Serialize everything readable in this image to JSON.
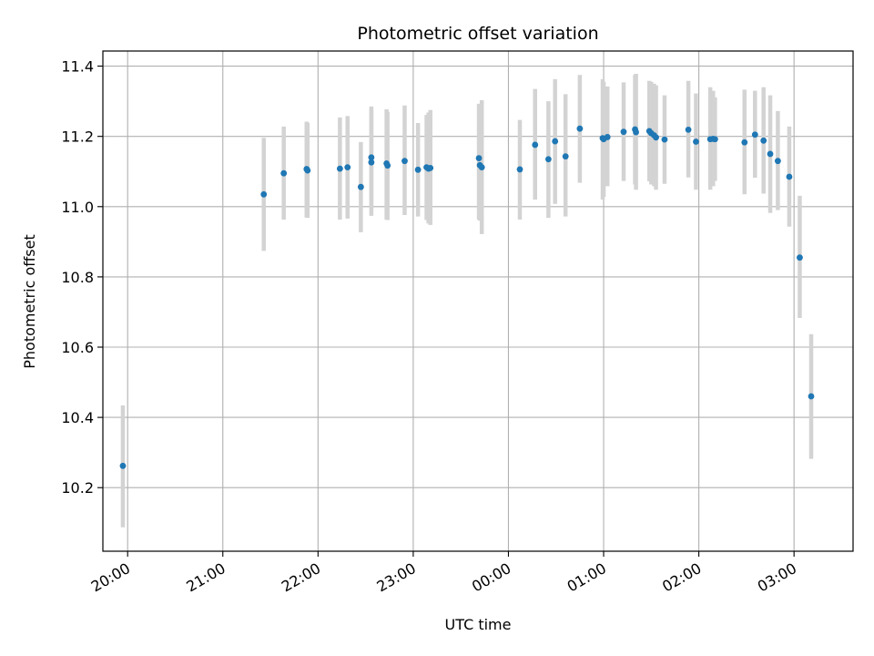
{
  "chart_data": {
    "type": "scatter",
    "title": "Photometric offset variation",
    "xlabel": "UTC time",
    "ylabel": "Photometric offset",
    "xlim": [
      -4.26,
      3.62
    ],
    "ylim": [
      10.019,
      11.443
    ],
    "x_unit": "hours relative to 00:00 UTC",
    "xticks": [
      {
        "value": -4,
        "label": "20:00"
      },
      {
        "value": -3,
        "label": "21:00"
      },
      {
        "value": -2,
        "label": "22:00"
      },
      {
        "value": -1,
        "label": "23:00"
      },
      {
        "value": 0,
        "label": "00:00"
      },
      {
        "value": 1,
        "label": "01:00"
      },
      {
        "value": 2,
        "label": "02:00"
      },
      {
        "value": 3,
        "label": "03:00"
      }
    ],
    "yticks": [
      10.2,
      10.4,
      10.6,
      10.8,
      11.0,
      11.2,
      11.4
    ],
    "grid": true,
    "colors": {
      "point": "#1f77b4",
      "errorbar": "#d3d3d3",
      "grid": "#b0b0b0"
    },
    "points": [
      {
        "x": -4.05,
        "y": 10.262,
        "lo": 10.087,
        "hi": 10.434
      },
      {
        "x": -2.57,
        "y": 11.035,
        "lo": 10.874,
        "hi": 11.196
      },
      {
        "x": -2.36,
        "y": 11.095,
        "lo": 10.963,
        "hi": 11.228
      },
      {
        "x": -2.12,
        "y": 11.107,
        "lo": 10.969,
        "hi": 11.242
      },
      {
        "x": -2.11,
        "y": 11.103,
        "lo": 10.968,
        "hi": 11.238
      },
      {
        "x": -1.77,
        "y": 11.108,
        "lo": 10.963,
        "hi": 11.254
      },
      {
        "x": -1.69,
        "y": 11.112,
        "lo": 10.966,
        "hi": 11.258
      },
      {
        "x": -1.55,
        "y": 11.056,
        "lo": 10.927,
        "hi": 11.184
      },
      {
        "x": -1.44,
        "y": 11.14,
        "lo": 10.995,
        "hi": 11.285
      },
      {
        "x": -1.44,
        "y": 11.126,
        "lo": 10.974,
        "hi": 11.278
      },
      {
        "x": -1.28,
        "y": 11.123,
        "lo": 10.963,
        "hi": 11.277
      },
      {
        "x": -1.27,
        "y": 11.117,
        "lo": 10.962,
        "hi": 11.27
      },
      {
        "x": -1.09,
        "y": 11.13,
        "lo": 10.976,
        "hi": 11.288
      },
      {
        "x": -0.95,
        "y": 11.105,
        "lo": 10.972,
        "hi": 11.238
      },
      {
        "x": -0.86,
        "y": 11.112,
        "lo": 10.962,
        "hi": 11.261
      },
      {
        "x": -0.84,
        "y": 11.108,
        "lo": 10.952,
        "hi": 11.268
      },
      {
        "x": -0.82,
        "y": 11.11,
        "lo": 10.948,
        "hi": 11.275
      },
      {
        "x": -0.31,
        "y": 11.138,
        "lo": 10.963,
        "hi": 11.293
      },
      {
        "x": -0.3,
        "y": 11.118,
        "lo": 10.96,
        "hi": 11.276
      },
      {
        "x": -0.28,
        "y": 11.112,
        "lo": 10.922,
        "hi": 11.303
      },
      {
        "x": 0.12,
        "y": 11.106,
        "lo": 10.963,
        "hi": 11.247
      },
      {
        "x": 0.28,
        "y": 11.176,
        "lo": 11.02,
        "hi": 11.335
      },
      {
        "x": 0.42,
        "y": 11.135,
        "lo": 10.968,
        "hi": 11.3
      },
      {
        "x": 0.49,
        "y": 11.186,
        "lo": 11.008,
        "hi": 11.363
      },
      {
        "x": 0.6,
        "y": 11.143,
        "lo": 10.972,
        "hi": 11.32
      },
      {
        "x": 0.75,
        "y": 11.222,
        "lo": 11.068,
        "hi": 11.375
      },
      {
        "x": 0.99,
        "y": 11.195,
        "lo": 11.02,
        "hi": 11.363
      },
      {
        "x": 1.0,
        "y": 11.192,
        "lo": 11.028,
        "hi": 11.355
      },
      {
        "x": 1.04,
        "y": 11.198,
        "lo": 11.058,
        "hi": 11.342
      },
      {
        "x": 1.21,
        "y": 11.213,
        "lo": 11.073,
        "hi": 11.354
      },
      {
        "x": 1.33,
        "y": 11.22,
        "lo": 11.063,
        "hi": 11.375
      },
      {
        "x": 1.34,
        "y": 11.212,
        "lo": 11.048,
        "hi": 11.378
      },
      {
        "x": 1.48,
        "y": 11.215,
        "lo": 11.072,
        "hi": 11.358
      },
      {
        "x": 1.5,
        "y": 11.209,
        "lo": 11.063,
        "hi": 11.355
      },
      {
        "x": 1.53,
        "y": 11.203,
        "lo": 11.058,
        "hi": 11.35
      },
      {
        "x": 1.55,
        "y": 11.197,
        "lo": 11.048,
        "hi": 11.345
      },
      {
        "x": 1.64,
        "y": 11.191,
        "lo": 11.065,
        "hi": 11.317
      },
      {
        "x": 1.89,
        "y": 11.219,
        "lo": 11.083,
        "hi": 11.358
      },
      {
        "x": 1.97,
        "y": 11.185,
        "lo": 11.048,
        "hi": 11.322
      },
      {
        "x": 2.12,
        "y": 11.192,
        "lo": 11.048,
        "hi": 11.34
      },
      {
        "x": 2.15,
        "y": 11.193,
        "lo": 11.058,
        "hi": 11.33
      },
      {
        "x": 2.17,
        "y": 11.192,
        "lo": 11.073,
        "hi": 11.311
      },
      {
        "x": 2.48,
        "y": 11.183,
        "lo": 11.035,
        "hi": 11.333
      },
      {
        "x": 2.59,
        "y": 11.205,
        "lo": 11.082,
        "hi": 11.33
      },
      {
        "x": 2.68,
        "y": 11.188,
        "lo": 11.037,
        "hi": 11.34
      },
      {
        "x": 2.75,
        "y": 11.15,
        "lo": 10.982,
        "hi": 11.317
      },
      {
        "x": 2.83,
        "y": 11.13,
        "lo": 10.99,
        "hi": 11.272
      },
      {
        "x": 2.95,
        "y": 11.085,
        "lo": 10.943,
        "hi": 11.228
      },
      {
        "x": 3.06,
        "y": 10.855,
        "lo": 10.683,
        "hi": 11.031
      },
      {
        "x": 3.18,
        "y": 10.46,
        "lo": 10.282,
        "hi": 10.637
      }
    ]
  }
}
